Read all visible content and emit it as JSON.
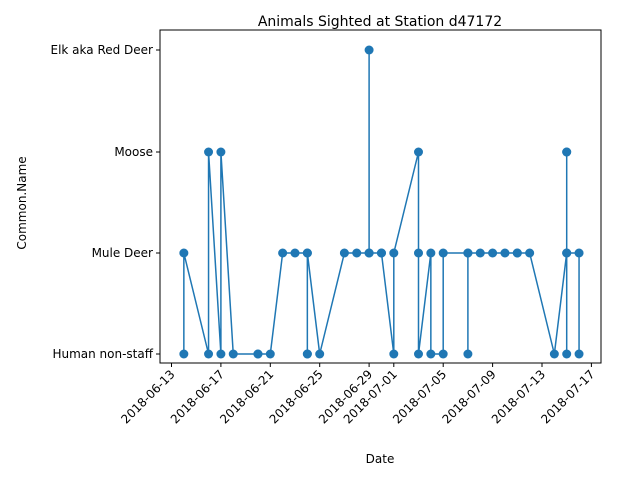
{
  "chart_data": {
    "type": "line",
    "title": "Animals Sighted at Station d47172",
    "xlabel": "Date",
    "ylabel": "Common.Name",
    "x_axis_type": "date",
    "xlim": [
      "2018-06-12",
      "2018-07-17"
    ],
    "categories": [
      "Human non-staff",
      "Mule Deer",
      "Moose",
      "Elk aka Red Deer"
    ],
    "x_ticks": [
      "2018-06-13",
      "2018-06-17",
      "2018-06-21",
      "2018-06-25",
      "2018-06-29",
      "2018-07-01",
      "2018-07-05",
      "2018-07-09",
      "2018-07-13",
      "2018-07-17"
    ],
    "grid": false,
    "line_color": "#1f77b4",
    "marker": "circle",
    "series": [
      {
        "x": [
          "2018-06-14",
          "2018-06-14",
          "2018-06-16",
          "2018-06-16",
          "2018-06-17",
          "2018-06-17",
          "2018-06-18",
          "2018-06-20",
          "2018-06-20",
          "2018-06-21",
          "2018-06-22",
          "2018-06-23",
          "2018-06-24",
          "2018-06-24",
          "2018-06-24",
          "2018-06-24",
          "2018-06-25",
          "2018-06-27",
          "2018-06-28",
          "2018-06-29",
          "2018-06-29",
          "2018-06-29",
          "2018-06-30",
          "2018-06-30",
          "2018-07-01",
          "2018-07-01",
          "2018-07-03",
          "2018-07-03",
          "2018-07-03",
          "2018-07-04",
          "2018-07-04",
          "2018-07-05",
          "2018-07-05",
          "2018-07-07",
          "2018-07-07",
          "2018-07-07",
          "2018-07-08",
          "2018-07-09",
          "2018-07-10",
          "2018-07-11",
          "2018-07-11",
          "2018-07-12",
          "2018-07-14",
          "2018-07-15",
          "2018-07-15",
          "2018-07-15",
          "2018-07-15",
          "2018-07-15",
          "2018-07-16",
          "2018-07-16"
        ],
        "y": [
          "Human non-staff",
          "Mule Deer",
          "Human non-staff",
          "Moose",
          "Human non-staff",
          "Moose",
          "Human non-staff",
          "Human non-staff",
          "Human non-staff",
          "Human non-staff",
          "Mule Deer",
          "Mule Deer",
          "Mule Deer",
          "Human non-staff",
          "Human non-staff",
          "Mule Deer",
          "Human non-staff",
          "Mule Deer",
          "Mule Deer",
          "Mule Deer",
          "Elk aka Red Deer",
          "Mule Deer",
          "Mule Deer",
          "Mule Deer",
          "Human non-staff",
          "Mule Deer",
          "Moose",
          "Mule Deer",
          "Human non-staff",
          "Mule Deer",
          "Human non-staff",
          "Human non-staff",
          "Mule Deer",
          "Mule Deer",
          "Human non-staff",
          "Mule Deer",
          "Mule Deer",
          "Mule Deer",
          "Mule Deer",
          "Mule Deer",
          "Mule Deer",
          "Mule Deer",
          "Human non-staff",
          "Mule Deer",
          "Moose",
          "Moose",
          "Human non-staff",
          "Mule Deer",
          "Mule Deer",
          "Human non-staff"
        ]
      }
    ]
  }
}
